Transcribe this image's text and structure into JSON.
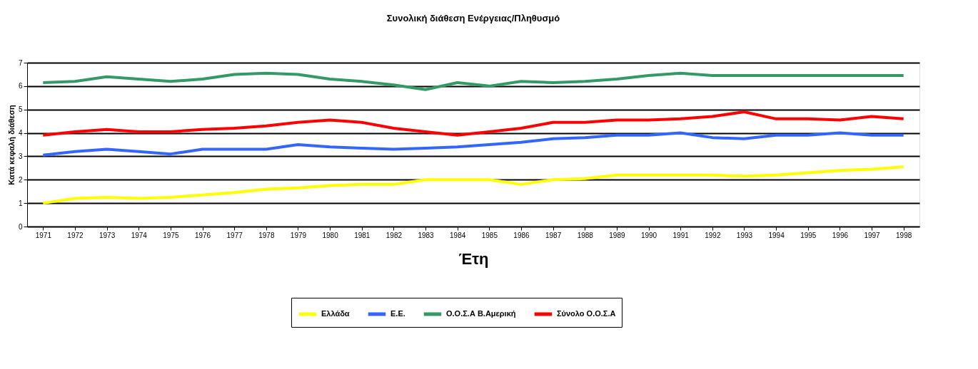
{
  "chart_data": {
    "type": "line",
    "title": "Συνολική διάθεση Ενέργειας/Πληθυσμό",
    "xlabel": "Έτη",
    "ylabel": "Κατά κεφαλή διάθεση",
    "categories": [
      "1971",
      "1972",
      "1973",
      "1974",
      "1975",
      "1976",
      "1977",
      "1978",
      "1979",
      "1980",
      "1981",
      "1982",
      "1983",
      "1984",
      "1985",
      "1986",
      "1987",
      "1988",
      "1989",
      "1990",
      "1991",
      "1992",
      "1993",
      "1994",
      "1995",
      "1996",
      "1997",
      "1998"
    ],
    "series": [
      {
        "name": "Ελλάδα",
        "color": "#ffff00",
        "values": [
          1.0,
          1.2,
          1.25,
          1.2,
          1.25,
          1.35,
          1.45,
          1.6,
          1.65,
          1.75,
          1.8,
          1.8,
          2.0,
          2.0,
          2.0,
          1.8,
          2.0,
          2.05,
          2.2,
          2.2,
          2.2,
          2.2,
          2.15,
          2.2,
          2.3,
          2.4,
          2.45,
          2.55
        ]
      },
      {
        "name": "Ε.Ε.",
        "color": "#3366ff",
        "values": [
          3.05,
          3.2,
          3.3,
          3.2,
          3.1,
          3.3,
          3.3,
          3.3,
          3.5,
          3.4,
          3.35,
          3.3,
          3.35,
          3.4,
          3.5,
          3.6,
          3.75,
          3.8,
          3.9,
          3.9,
          4.0,
          3.8,
          3.75,
          3.9,
          3.9,
          4.0,
          3.9,
          3.9
        ]
      },
      {
        "name": "Ο.Ο.Σ.Α Β.Αμερική",
        "color": "#339966",
        "values": [
          6.15,
          6.2,
          6.4,
          6.3,
          6.2,
          6.3,
          6.5,
          6.55,
          6.5,
          6.3,
          6.2,
          6.05,
          5.85,
          6.15,
          6.0,
          6.2,
          6.15,
          6.2,
          6.3,
          6.45,
          6.55,
          6.45,
          6.45,
          6.45,
          6.45,
          6.45,
          6.45,
          6.45
        ]
      },
      {
        "name": "Σύνολο Ο.Ο.Σ.Α",
        "color": "#ff0000",
        "values": [
          3.9,
          4.05,
          4.15,
          4.05,
          4.05,
          4.15,
          4.2,
          4.3,
          4.45,
          4.55,
          4.45,
          4.2,
          4.05,
          3.9,
          4.05,
          4.2,
          4.45,
          4.45,
          4.55,
          4.55,
          4.6,
          4.7,
          4.9,
          4.6,
          4.6,
          4.55,
          4.7,
          4.6
        ]
      }
    ],
    "ylim": [
      0,
      7
    ],
    "yticks": [
      0,
      1,
      2,
      3,
      4,
      5,
      6,
      7
    ],
    "grid": "y",
    "legend": "bottom",
    "marker": "none",
    "line_style": "solid"
  }
}
